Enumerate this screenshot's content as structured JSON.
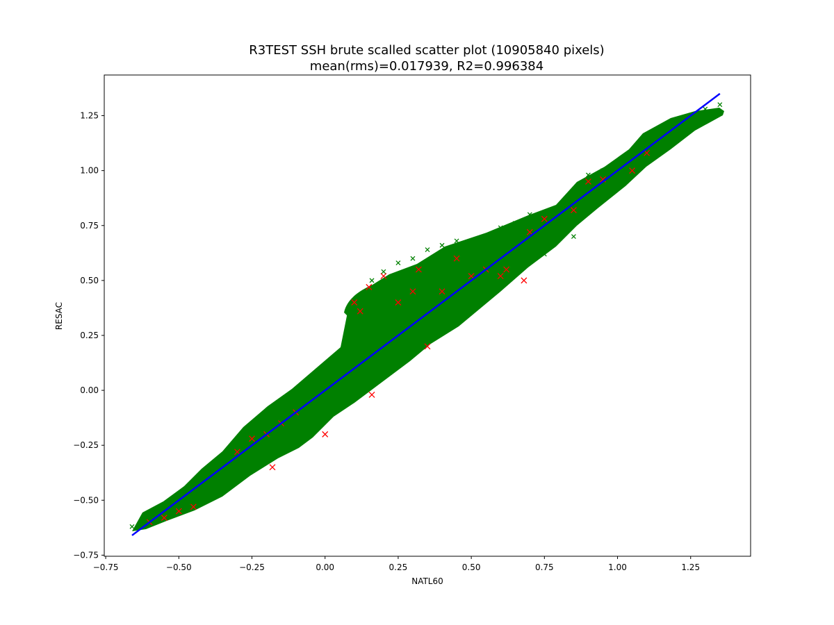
{
  "chart_data": {
    "type": "scatter",
    "title": "R3TEST SSH brute scalled scatter plot (10905840 pixels)",
    "subtitle": "mean(rms)=0.017939, R2=0.996384",
    "xlabel": "NATL60",
    "ylabel": "RESAC",
    "xlim": [
      -0.755,
      1.455
    ],
    "ylim": [
      -0.755,
      1.435
    ],
    "xticks": [
      -0.75,
      -0.5,
      -0.25,
      0.0,
      0.25,
      0.5,
      0.75,
      1.0,
      1.25
    ],
    "xtick_labels": [
      "−0.75",
      "−0.50",
      "−0.25",
      "0.00",
      "0.25",
      "0.50",
      "0.75",
      "1.00",
      "1.25"
    ],
    "yticks": [
      -0.75,
      -0.5,
      -0.25,
      0.0,
      0.25,
      0.5,
      0.75,
      1.0,
      1.25
    ],
    "ytick_labels": [
      "−0.75",
      "−0.50",
      "−0.25",
      "0.00",
      "0.25",
      "0.50",
      "0.75",
      "1.00",
      "1.25"
    ],
    "grid": false,
    "series": [
      {
        "marker": "x",
        "color": "#008000",
        "x": [
          -0.66,
          -0.6,
          -0.55,
          -0.5,
          -0.45,
          -0.4,
          -0.35,
          -0.3,
          -0.25,
          -0.2,
          -0.15,
          -0.1,
          -0.05,
          0.0,
          0.05,
          0.1,
          0.15,
          0.2,
          0.25,
          0.3,
          0.35,
          0.4,
          0.45,
          0.5,
          0.55,
          0.6,
          0.65,
          0.7,
          0.75,
          0.8,
          0.85,
          0.9,
          0.95,
          1.0,
          1.05,
          1.1,
          1.15,
          1.2,
          1.25,
          1.3,
          1.35,
          -0.26,
          -0.2,
          -0.15,
          -0.05,
          0.1,
          0.13,
          0.16,
          0.2,
          0.25,
          0.3,
          0.35,
          0.4,
          0.45,
          0.6,
          0.65,
          0.7,
          0.85,
          0.9,
          0.95,
          -0.4,
          -0.3,
          -0.1,
          0.05,
          0.2,
          0.3,
          0.55,
          0.75,
          0.85,
          1.1
        ],
        "y": [
          -0.62,
          -0.58,
          -0.55,
          -0.5,
          -0.44,
          -0.4,
          -0.34,
          -0.3,
          -0.24,
          -0.2,
          -0.14,
          -0.1,
          -0.05,
          0.0,
          0.05,
          0.1,
          0.16,
          0.2,
          0.25,
          0.3,
          0.36,
          0.4,
          0.45,
          0.5,
          0.55,
          0.6,
          0.66,
          0.7,
          0.75,
          0.8,
          0.85,
          0.9,
          0.96,
          1.0,
          1.05,
          1.1,
          1.16,
          1.2,
          1.25,
          1.28,
          1.3,
          -0.24,
          -0.14,
          -0.08,
          0.04,
          0.4,
          0.43,
          0.5,
          0.54,
          0.58,
          0.6,
          0.64,
          0.66,
          0.68,
          0.74,
          0.76,
          0.8,
          0.9,
          0.98,
          1.0,
          -0.48,
          -0.4,
          -0.18,
          -0.05,
          0.12,
          0.2,
          0.44,
          0.62,
          0.7,
          1.05
        ]
      },
      {
        "marker": "x",
        "color": "#ff0000",
        "x": [
          -0.6,
          -0.55,
          -0.5,
          -0.45,
          -0.3,
          -0.25,
          -0.2,
          -0.15,
          -0.18,
          -0.1,
          0.0,
          0.1,
          0.12,
          0.15,
          0.16,
          0.2,
          0.25,
          0.3,
          0.32,
          0.35,
          0.4,
          0.45,
          0.5,
          0.55,
          0.6,
          0.62,
          0.68,
          0.7,
          0.75,
          0.85,
          0.9,
          0.95,
          1.05,
          1.1
        ],
        "y": [
          -0.6,
          -0.58,
          -0.55,
          -0.53,
          -0.28,
          -0.22,
          -0.2,
          -0.15,
          -0.35,
          -0.1,
          -0.2,
          0.4,
          0.36,
          0.47,
          -0.02,
          0.52,
          0.4,
          0.45,
          0.55,
          0.2,
          0.45,
          0.6,
          0.52,
          0.55,
          0.52,
          0.55,
          0.5,
          0.72,
          0.78,
          0.82,
          0.95,
          0.96,
          1.0,
          1.08
        ]
      },
      {
        "marker": "line",
        "color": "#0000ff",
        "x": [
          -0.66,
          1.35
        ],
        "y": [
          -0.66,
          1.35
        ]
      }
    ]
  }
}
